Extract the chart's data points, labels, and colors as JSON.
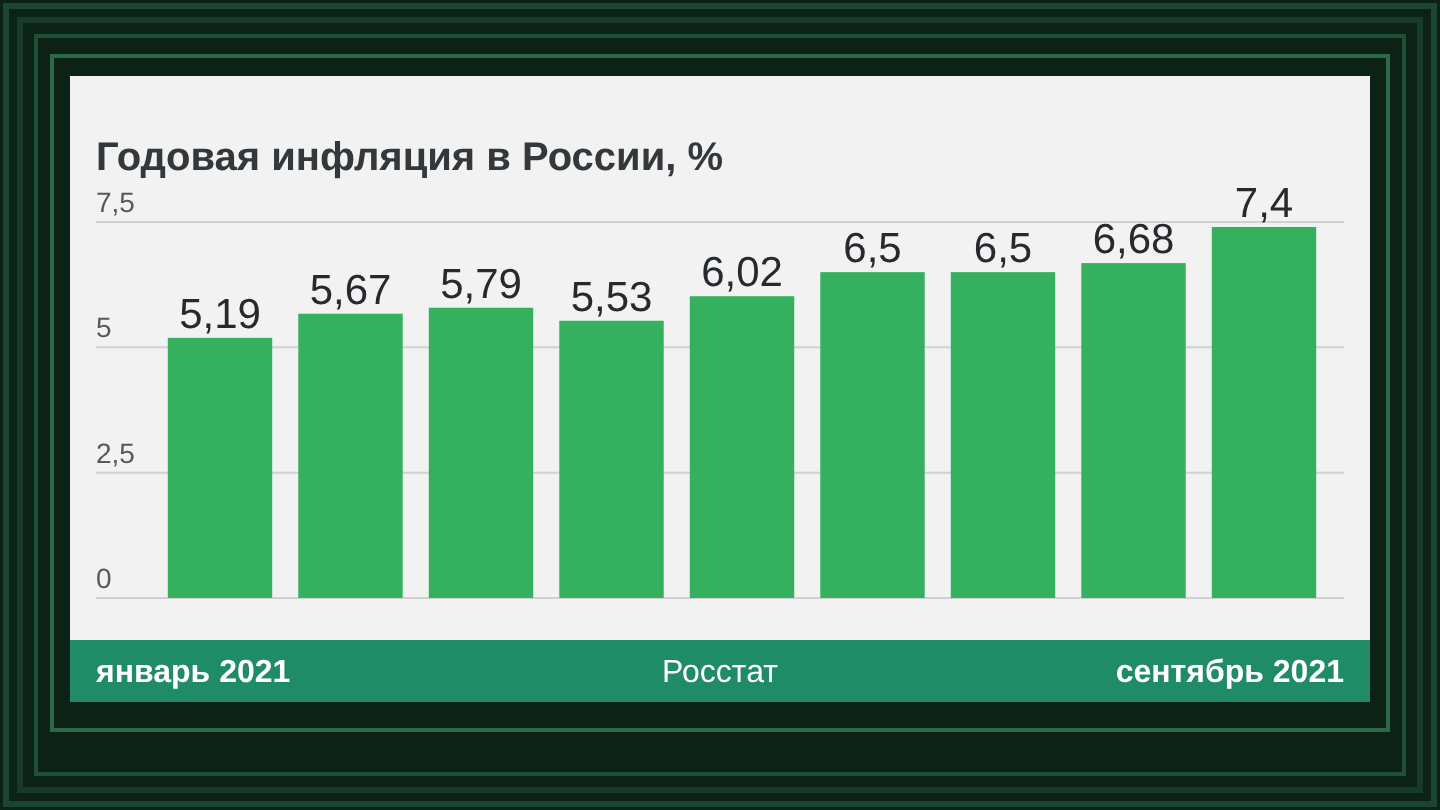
{
  "chart_data": {
    "type": "bar",
    "title": "Годовая инфляция в России, %",
    "categories": [
      "январь 2021",
      null,
      null,
      null,
      null,
      null,
      null,
      null,
      "сентябрь 2021"
    ],
    "values": [
      5.19,
      5.67,
      5.79,
      5.53,
      6.02,
      6.5,
      6.5,
      6.68,
      7.4
    ],
    "value_labels": [
      "5,19",
      "5,67",
      "5,79",
      "5,53",
      "6,02",
      "6,5",
      "6,5",
      "6,68",
      "7,4"
    ],
    "color": "#34b05f",
    "ylim": [
      0,
      7.5
    ],
    "yticks": [
      0,
      {
        "value": 2.5,
        "label": "2,5"
      },
      5,
      {
        "value": 7.5,
        "label": "7,5"
      }
    ],
    "grid": "y",
    "annotations": [
      "Росстат"
    ]
  }
}
